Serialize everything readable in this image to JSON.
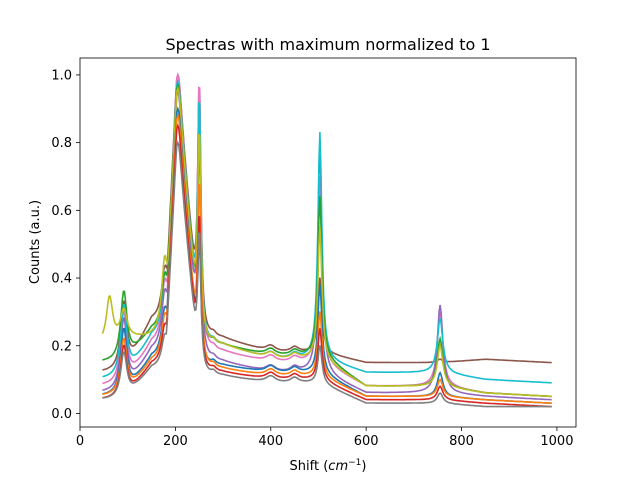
{
  "chart_data": {
    "type": "line",
    "title": "Spectras with maximum normalized to 1",
    "xlabel_main": "Shift (",
    "xlabel_unit_base": "cm",
    "xlabel_unit_exp": "−1",
    "xlabel_close": ")",
    "ylabel": "Counts (a.u.)",
    "xlim": [
      0,
      1040
    ],
    "ylim": [
      -0.04,
      1.05
    ],
    "x_ticks": [
      0,
      200,
      400,
      600,
      800,
      1000
    ],
    "x_tick_labels": [
      "0",
      "200",
      "400",
      "600",
      "800",
      "1000"
    ],
    "y_ticks": [
      0.0,
      0.2,
      0.4,
      0.6,
      0.8,
      1.0
    ],
    "y_tick_labels": [
      "0.0",
      "0.2",
      "0.4",
      "0.6",
      "0.8",
      "1.0"
    ],
    "grid": false,
    "legend": "none",
    "x_range": [
      47,
      990
    ],
    "peaks_cm1": [
      62,
      92,
      178,
      205,
      250,
      280,
      400,
      450,
      503,
      705,
      755
    ],
    "series": [
      {
        "color": "#8c564b",
        "x": [
          47,
          92,
          150,
          178,
          205,
          250,
          300,
          400,
          503,
          600,
          755,
          850,
          990
        ],
        "values": [
          0.12,
          0.33,
          0.27,
          0.42,
          1.0,
          0.99,
          0.22,
          0.18,
          0.4,
          0.15,
          0.16,
          0.16,
          0.15
        ]
      },
      {
        "color": "#e377c2",
        "x": [
          47,
          92,
          150,
          178,
          205,
          250,
          300,
          400,
          503,
          600,
          755,
          850,
          990
        ],
        "values": [
          0.08,
          0.3,
          0.2,
          0.38,
          1.0,
          1.0,
          0.18,
          0.15,
          0.7,
          0.08,
          0.3,
          0.06,
          0.05
        ]
      },
      {
        "color": "#9467bd",
        "x": [
          47,
          92,
          150,
          178,
          205,
          250,
          300,
          400,
          503,
          600,
          755,
          850,
          990
        ],
        "values": [
          0.06,
          0.28,
          0.18,
          0.35,
          0.95,
          0.9,
          0.15,
          0.12,
          0.79,
          0.06,
          0.32,
          0.05,
          0.04
        ]
      },
      {
        "color": "#17becf",
        "x": [
          47,
          92,
          150,
          178,
          205,
          250,
          300,
          400,
          503,
          600,
          755,
          850,
          990
        ],
        "values": [
          0.1,
          0.32,
          0.22,
          0.4,
          0.98,
          0.95,
          0.2,
          0.16,
          0.83,
          0.12,
          0.28,
          0.1,
          0.09
        ]
      },
      {
        "color": "#2ca02c",
        "x": [
          47,
          92,
          150,
          178,
          205,
          250,
          300,
          400,
          503,
          600,
          755,
          850,
          990
        ],
        "values": [
          0.15,
          0.36,
          0.24,
          0.4,
          0.97,
          0.8,
          0.2,
          0.17,
          0.64,
          0.08,
          0.22,
          0.06,
          0.05
        ]
      },
      {
        "color": "#bcbd22",
        "x": [
          47,
          62,
          92,
          150,
          178,
          205,
          250,
          300,
          400,
          503,
          600,
          755,
          850,
          990
        ],
        "values": [
          0.2,
          0.34,
          0.3,
          0.22,
          0.45,
          0.96,
          0.85,
          0.2,
          0.16,
          0.55,
          0.08,
          0.2,
          0.06,
          0.05
        ]
      },
      {
        "color": "#1f77b4",
        "x": [
          47,
          92,
          150,
          178,
          205,
          250,
          300,
          400,
          503,
          600,
          755,
          850,
          990
        ],
        "values": [
          0.05,
          0.25,
          0.16,
          0.3,
          0.9,
          0.52,
          0.14,
          0.12,
          0.38,
          0.05,
          0.12,
          0.04,
          0.03
        ]
      },
      {
        "color": "#ff7f0e",
        "x": [
          47,
          92,
          150,
          178,
          205,
          250,
          300,
          400,
          503,
          600,
          755,
          850,
          990
        ],
        "values": [
          0.05,
          0.22,
          0.15,
          0.28,
          0.88,
          0.7,
          0.13,
          0.11,
          0.3,
          0.05,
          0.1,
          0.04,
          0.03
        ]
      },
      {
        "color": "#d62728",
        "x": [
          47,
          92,
          150,
          178,
          205,
          250,
          300,
          400,
          503,
          600,
          755,
          850,
          990
        ],
        "values": [
          0.04,
          0.2,
          0.14,
          0.25,
          0.85,
          0.6,
          0.12,
          0.1,
          0.25,
          0.04,
          0.08,
          0.03,
          0.02
        ]
      },
      {
        "color": "#7f7f7f",
        "x": [
          47,
          92,
          150,
          178,
          205,
          250,
          300,
          400,
          503,
          600,
          755,
          850,
          990
        ],
        "values": [
          0.04,
          0.18,
          0.13,
          0.22,
          0.8,
          0.55,
          0.11,
          0.09,
          0.2,
          0.03,
          0.06,
          0.02,
          0.02
        ]
      }
    ]
  }
}
